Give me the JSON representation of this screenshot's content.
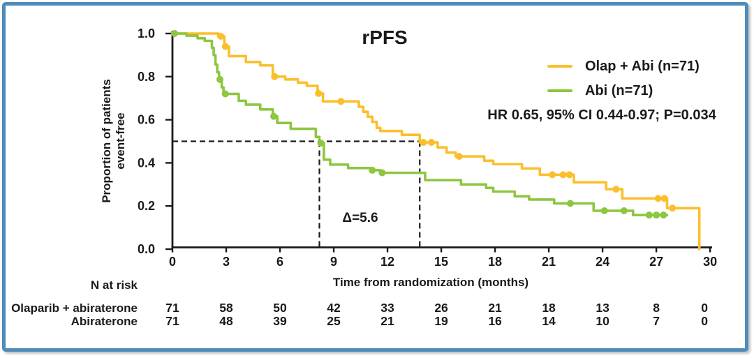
{
  "title": "rPFS",
  "colors": {
    "frame_border": "#4E8CBA",
    "olap_abi": "#FBBF2D",
    "abi": "#8DC63F",
    "text": "#1a1a1a"
  },
  "legend": {
    "items": [
      {
        "label": "Olap + Abi (n=71)",
        "color": "#FBBF2D"
      },
      {
        "label": "Abi (n=71)",
        "color": "#8DC63F"
      }
    ]
  },
  "stats_line": "HR 0.65, 95% CI 0.44-0.97; P=0.034",
  "annotation_delta": "Δ=5.6",
  "y_axis": {
    "label_line1": "Proportion of patients",
    "label_line2": "event-free",
    "ticks": [
      "0.0",
      "0.2",
      "0.4",
      "0.6",
      "0.8",
      "1.0"
    ]
  },
  "x_axis": {
    "label": "Time from randomization (months)",
    "ticks": [
      0,
      3,
      6,
      9,
      12,
      15,
      18,
      21,
      24,
      27,
      30
    ]
  },
  "risk_table": {
    "header": "N at risk",
    "rows": [
      {
        "label": "Olaparib + abiraterone",
        "values": [
          "71",
          "58",
          "50",
          "42",
          "33",
          "26",
          "21",
          "18",
          "13",
          "8",
          "0"
        ]
      },
      {
        "label": "Abiraterone",
        "values": [
          "71",
          "48",
          "39",
          "25",
          "21",
          "19",
          "16",
          "14",
          "10",
          "7",
          "0"
        ]
      }
    ]
  },
  "chart_data": {
    "type": "line",
    "subtype": "kaplan-meier-step",
    "title": "rPFS",
    "xlabel": "Time from randomization (months)",
    "ylabel": "Proportion of patients event-free",
    "xlim": [
      0,
      30
    ],
    "ylim": [
      0,
      1.0
    ],
    "legend_position": "upper-right",
    "grid": false,
    "medians": {
      "level": 0.5,
      "olap_abi_months": 13.8,
      "abi_months": 8.2,
      "delta_months": 5.6
    },
    "series": [
      {
        "name": "Olap + Abi (n=71)",
        "color": "#FBBF2D",
        "end_time": 29.4,
        "steps": [
          [
            0,
            1.0
          ],
          [
            2.55,
            0.987
          ],
          [
            2.9,
            0.94
          ],
          [
            3.15,
            0.895
          ],
          [
            4.1,
            0.868
          ],
          [
            4.9,
            0.852
          ],
          [
            5.6,
            0.8
          ],
          [
            6.3,
            0.787
          ],
          [
            7.0,
            0.772
          ],
          [
            7.5,
            0.757
          ],
          [
            8.1,
            0.722
          ],
          [
            8.4,
            0.685
          ],
          [
            10.4,
            0.66
          ],
          [
            10.65,
            0.637
          ],
          [
            10.9,
            0.614
          ],
          [
            11.15,
            0.59
          ],
          [
            11.4,
            0.562
          ],
          [
            11.6,
            0.548
          ],
          [
            12.8,
            0.53
          ],
          [
            13.8,
            0.495
          ],
          [
            14.8,
            0.472
          ],
          [
            15.3,
            0.448
          ],
          [
            15.8,
            0.43
          ],
          [
            17.4,
            0.41
          ],
          [
            17.9,
            0.394
          ],
          [
            19.5,
            0.374
          ],
          [
            20.5,
            0.345
          ],
          [
            22.4,
            0.31
          ],
          [
            24.2,
            0.278
          ],
          [
            25.1,
            0.235
          ],
          [
            27.6,
            0.19
          ],
          [
            29.4,
            0.0
          ]
        ],
        "censor_marks": [
          [
            2.7,
            0.987
          ],
          [
            2.95,
            0.94
          ],
          [
            5.7,
            0.8
          ],
          [
            8.15,
            0.722
          ],
          [
            9.4,
            0.685
          ],
          [
            14.0,
            0.495
          ],
          [
            14.45,
            0.495
          ],
          [
            16.0,
            0.43
          ],
          [
            21.2,
            0.345
          ],
          [
            21.8,
            0.345
          ],
          [
            22.15,
            0.345
          ],
          [
            24.75,
            0.278
          ],
          [
            27.1,
            0.235
          ],
          [
            27.45,
            0.235
          ],
          [
            27.9,
            0.19
          ]
        ]
      },
      {
        "name": "Abi (n=71)",
        "color": "#8DC63F",
        "end_time": 27.6,
        "steps": [
          [
            0,
            1.0
          ],
          [
            0.78,
            0.99
          ],
          [
            1.4,
            0.978
          ],
          [
            1.8,
            0.966
          ],
          [
            2.2,
            0.934
          ],
          [
            2.3,
            0.9
          ],
          [
            2.4,
            0.856
          ],
          [
            2.5,
            0.82
          ],
          [
            2.6,
            0.787
          ],
          [
            2.75,
            0.75
          ],
          [
            2.85,
            0.72
          ],
          [
            3.7,
            0.688
          ],
          [
            4.1,
            0.67
          ],
          [
            4.9,
            0.648
          ],
          [
            5.6,
            0.616
          ],
          [
            5.85,
            0.585
          ],
          [
            6.6,
            0.558
          ],
          [
            8.0,
            0.52
          ],
          [
            8.2,
            0.492
          ],
          [
            8.45,
            0.415
          ],
          [
            8.8,
            0.392
          ],
          [
            9.8,
            0.376
          ],
          [
            11.05,
            0.366
          ],
          [
            11.6,
            0.354
          ],
          [
            14.1,
            0.32
          ],
          [
            16.1,
            0.3
          ],
          [
            17.5,
            0.284
          ],
          [
            17.9,
            0.267
          ],
          [
            19.1,
            0.245
          ],
          [
            19.9,
            0.23
          ],
          [
            21.3,
            0.212
          ],
          [
            23.5,
            0.178
          ],
          [
            25.7,
            0.158
          ]
        ],
        "censor_marks": [
          [
            0.12,
            1.0
          ],
          [
            2.65,
            0.787
          ],
          [
            2.95,
            0.72
          ],
          [
            5.65,
            0.616
          ],
          [
            8.28,
            0.492
          ],
          [
            11.15,
            0.366
          ],
          [
            11.7,
            0.354
          ],
          [
            22.2,
            0.212
          ],
          [
            24.1,
            0.178
          ],
          [
            25.2,
            0.178
          ],
          [
            26.6,
            0.158
          ],
          [
            27.0,
            0.158
          ],
          [
            27.4,
            0.158
          ]
        ]
      }
    ]
  }
}
